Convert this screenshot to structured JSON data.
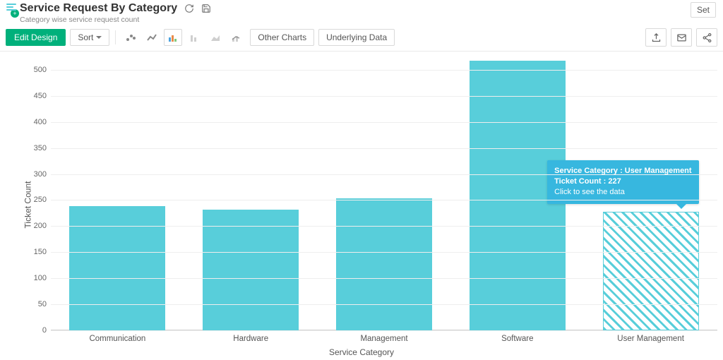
{
  "header": {
    "title": "Service Request By Category",
    "subtitle": "Category wise service request count",
    "settings_label": "Set"
  },
  "toolbar": {
    "edit_design": "Edit Design",
    "sort": "Sort",
    "other_charts": "Other Charts",
    "underlying_data": "Underlying Data"
  },
  "chart": {
    "type": "bar",
    "ylabel": "Ticket Count",
    "xlabel": "Service Category",
    "ylim": [
      0,
      500
    ],
    "ytick_step": 50,
    "bar_color": "#58ceda",
    "hatched_bar_index": 4,
    "background_color": "#ffffff",
    "grid_color": "#eeeeee",
    "axis_color": "#cfcfcf",
    "tick_font_size": 11,
    "label_font_size": 12,
    "bar_width_ratio": 0.72,
    "categories": [
      "Communication",
      "Hardware",
      "Management",
      "Software",
      "User Management"
    ],
    "values": [
      238,
      232,
      253,
      518,
      227
    ]
  },
  "tooltip": {
    "line1": "Service Category : User Management",
    "line2": "Ticket Count : 227",
    "line3": "Click to see the data",
    "bg_color": "#37b7df"
  }
}
